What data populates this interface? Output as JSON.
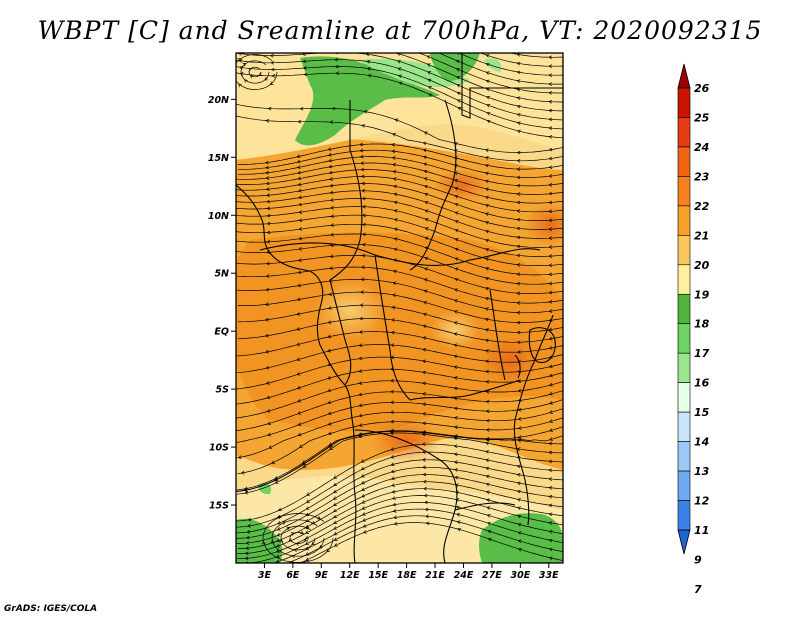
{
  "title": "WBPT [C] and Sreamline at 700hPa, VT: 2020092315",
  "credit": "GrADS: IGES/COLA",
  "map": {
    "lon_range": [
      0,
      34.5
    ],
    "lat_range": [
      -20,
      24
    ],
    "lat_ticks": [
      {
        "value": 20,
        "label": "20N"
      },
      {
        "value": 15,
        "label": "15N"
      },
      {
        "value": 10,
        "label": "10N"
      },
      {
        "value": 5,
        "label": "5N"
      },
      {
        "value": 0,
        "label": "EQ"
      },
      {
        "value": -5,
        "label": "5S"
      },
      {
        "value": -10,
        "label": "10S"
      },
      {
        "value": -15,
        "label": "15S"
      }
    ],
    "lon_ticks": [
      {
        "value": 3,
        "label": "3E"
      },
      {
        "value": 6,
        "label": "6E"
      },
      {
        "value": 9,
        "label": "9E"
      },
      {
        "value": 12,
        "label": "12E"
      },
      {
        "value": 15,
        "label": "15E"
      },
      {
        "value": 18,
        "label": "18E"
      },
      {
        "value": 21,
        "label": "21E"
      },
      {
        "value": 24,
        "label": "24E"
      },
      {
        "value": 27,
        "label": "27E"
      },
      {
        "value": 30,
        "label": "30E"
      },
      {
        "value": 33,
        "label": "33E"
      }
    ]
  },
  "colorbar": {
    "levels": [
      "26",
      "25",
      "24",
      "23",
      "22",
      "21",
      "20",
      "19",
      "18",
      "17",
      "16",
      "15",
      "14",
      "13",
      "12",
      "11",
      "9",
      "7"
    ],
    "colors": [
      "#a00000",
      "#c81400",
      "#e63c14",
      "#f06414",
      "#f5821e",
      "#f5a028",
      "#fac85a",
      "#fff0a0",
      "#50b43c",
      "#6ed264",
      "#9be68c",
      "#e6ffe6",
      "#c8e6fa",
      "#9bc8f5",
      "#6eaaf0",
      "#3c82e6",
      "#1e64d2"
    ]
  }
}
